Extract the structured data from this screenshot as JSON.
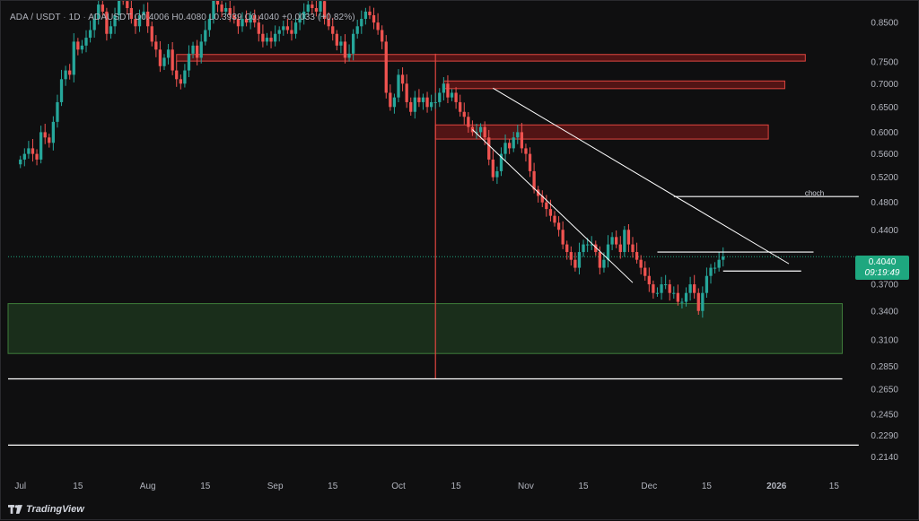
{
  "header": {
    "symbol": "ADA / USDT",
    "interval": "1D",
    "ticker": "ADAUSDT",
    "open": "O0.4006",
    "high": "H0.4080",
    "low": "L0.3939",
    "close": "C0.4040",
    "change": "+0.0033 (+0.82%)"
  },
  "price_tag": {
    "price": "0.4040",
    "countdown": "09:19:49"
  },
  "footer": {
    "brand": "TradingView"
  },
  "colors": {
    "up": "#26a69a",
    "down": "#ef5350",
    "background": "#0f0f10",
    "supply_zone": "#8b1a1a",
    "demand_zone": "#1f3a1f",
    "line": "#ffffff"
  },
  "chart_data": {
    "type": "candlestick",
    "symbol": "ADAUSDT",
    "timeframe": "1D",
    "y_scale": "log",
    "y_ticks": [
      "0.8500",
      "0.7500",
      "0.7000",
      "0.6500",
      "0.6000",
      "0.5600",
      "0.5200",
      "0.4800",
      "0.4400",
      "0.3700",
      "0.3400",
      "0.3100",
      "0.2850",
      "0.2650",
      "0.2450",
      "0.2290",
      "0.2140"
    ],
    "x_ticks": [
      "Jul",
      "15",
      "Aug",
      "15",
      "Sep",
      "15",
      "Oct",
      "15",
      "Nov",
      "15",
      "Dec",
      "15",
      "2026",
      "15"
    ],
    "x_tick_dates": [
      "2025-07-01",
      "2025-07-15",
      "2025-08-01",
      "2025-08-15",
      "2025-09-01",
      "2025-09-15",
      "2025-10-01",
      "2025-10-15",
      "2025-11-01",
      "2025-11-15",
      "2025-12-01",
      "2025-12-15",
      "2026-01-01",
      "2026-01-15"
    ],
    "x_range": [
      "2025-06-28",
      "2026-01-23"
    ],
    "y_range": [
      0.2,
      0.89
    ],
    "last_price": 0.404,
    "closes": [
      0.55,
      0.56,
      0.57,
      0.56,
      0.55,
      0.6,
      0.59,
      0.58,
      0.62,
      0.66,
      0.71,
      0.73,
      0.72,
      0.8,
      0.78,
      0.79,
      0.81,
      0.83,
      0.86,
      0.9,
      0.88,
      0.82,
      0.84,
      0.87,
      0.92,
      0.91,
      0.89,
      0.86,
      0.84,
      0.87,
      0.88,
      0.84,
      0.8,
      0.78,
      0.74,
      0.76,
      0.78,
      0.73,
      0.71,
      0.7,
      0.73,
      0.77,
      0.79,
      0.76,
      0.8,
      0.83,
      0.86,
      0.92,
      0.9,
      0.88,
      0.89,
      0.87,
      0.86,
      0.84,
      0.86,
      0.85,
      0.87,
      0.85,
      0.82,
      0.8,
      0.81,
      0.8,
      0.82,
      0.83,
      0.84,
      0.83,
      0.82,
      0.85,
      0.86,
      0.88,
      0.9,
      0.89,
      0.88,
      0.91,
      0.86,
      0.84,
      0.82,
      0.79,
      0.8,
      0.76,
      0.77,
      0.82,
      0.84,
      0.86,
      0.88,
      0.87,
      0.85,
      0.83,
      0.8,
      0.68,
      0.65,
      0.67,
      0.72,
      0.7,
      0.66,
      0.64,
      0.67,
      0.66,
      0.67,
      0.65,
      0.66,
      0.66,
      0.68,
      0.7,
      0.67,
      0.68,
      0.66,
      0.64,
      0.63,
      0.61,
      0.6,
      0.6,
      0.61,
      0.59,
      0.55,
      0.52,
      0.53,
      0.56,
      0.58,
      0.57,
      0.59,
      0.6,
      0.57,
      0.56,
      0.53,
      0.5,
      0.49,
      0.48,
      0.47,
      0.46,
      0.45,
      0.44,
      0.42,
      0.41,
      0.4,
      0.39,
      0.41,
      0.42,
      0.42,
      0.42,
      0.41,
      0.39,
      0.4,
      0.42,
      0.43,
      0.42,
      0.41,
      0.44,
      0.42,
      0.41,
      0.4,
      0.39,
      0.38,
      0.37,
      0.36,
      0.36,
      0.37,
      0.37,
      0.36,
      0.36,
      0.35,
      0.35,
      0.36,
      0.37,
      0.36,
      0.34,
      0.36,
      0.38,
      0.39,
      0.39,
      0.4,
      0.404
    ],
    "annotations": {
      "supply_zones": [
        {
          "from": "2025-08-08",
          "to": "2026-01-08",
          "low": 0.752,
          "high": 0.768
        },
        {
          "from": "2025-10-12",
          "to": "2026-01-03",
          "low": 0.689,
          "high": 0.706
        },
        {
          "from": "2025-10-10",
          "to": "2025-12-30",
          "low": 0.587,
          "high": 0.614
        }
      ],
      "demand_zone": {
        "from": "2025-06-28",
        "to": "2026-01-17",
        "low": 0.297,
        "high": 0.348
      },
      "horizontal_lines": [
        {
          "from": "2025-06-28",
          "to": "2026-01-17",
          "price": 0.274
        },
        {
          "from": "2025-06-28",
          "to": "2026-01-21",
          "price": 0.222
        },
        {
          "from": "2025-12-07",
          "to": "2026-01-21",
          "price": 0.489,
          "label": "choch"
        },
        {
          "from": "2025-12-03",
          "to": "2026-01-10",
          "price": 0.41
        },
        {
          "from": "2025-12-19",
          "to": "2026-01-07",
          "price": 0.386
        }
      ],
      "channel_lines": [
        {
          "x1": "2025-10-24",
          "y1": 0.69,
          "x2": "2026-01-04",
          "y2": 0.395
        },
        {
          "x1": "2025-10-19",
          "y1": 0.605,
          "x2": "2025-11-27",
          "y2": 0.372
        }
      ],
      "vertical_line": {
        "date": "2025-10-10",
        "from": 0.274,
        "to": 0.77
      }
    }
  }
}
